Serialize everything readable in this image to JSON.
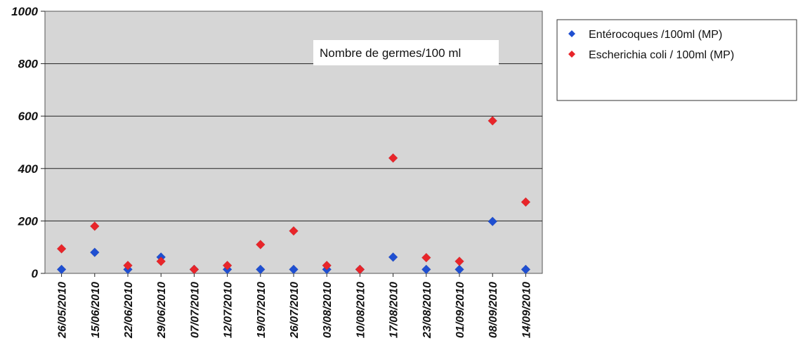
{
  "chart_data": {
    "type": "scatter",
    "annotation": "Nombre de germes/100 ml",
    "categories": [
      "26/05/2010",
      "15/06/2010",
      "22/06/2010",
      "29/06/2010",
      "07/07/2010",
      "12/07/2010",
      "19/07/2010",
      "26/07/2010",
      "03/08/2010",
      "10/08/2010",
      "17/08/2010",
      "23/08/2010",
      "01/09/2010",
      "08/09/2010",
      "14/09/2010"
    ],
    "ylim": [
      0,
      1000
    ],
    "yticks": [
      0,
      200,
      400,
      600,
      800,
      1000
    ],
    "grid": true,
    "legend_position": "top-right",
    "series": [
      {
        "name": "Entérocoques /100ml (MP)",
        "color": "#1f4fd1",
        "values": [
          15,
          80,
          15,
          62,
          15,
          15,
          15,
          15,
          15,
          15,
          62,
          15,
          15,
          198,
          15
        ]
      },
      {
        "name": "Escherichia coli / 100ml (MP)",
        "color": "#e8252a",
        "values": [
          94,
          180,
          30,
          46,
          15,
          30,
          110,
          162,
          30,
          15,
          440,
          60,
          46,
          582,
          272
        ]
      }
    ]
  }
}
